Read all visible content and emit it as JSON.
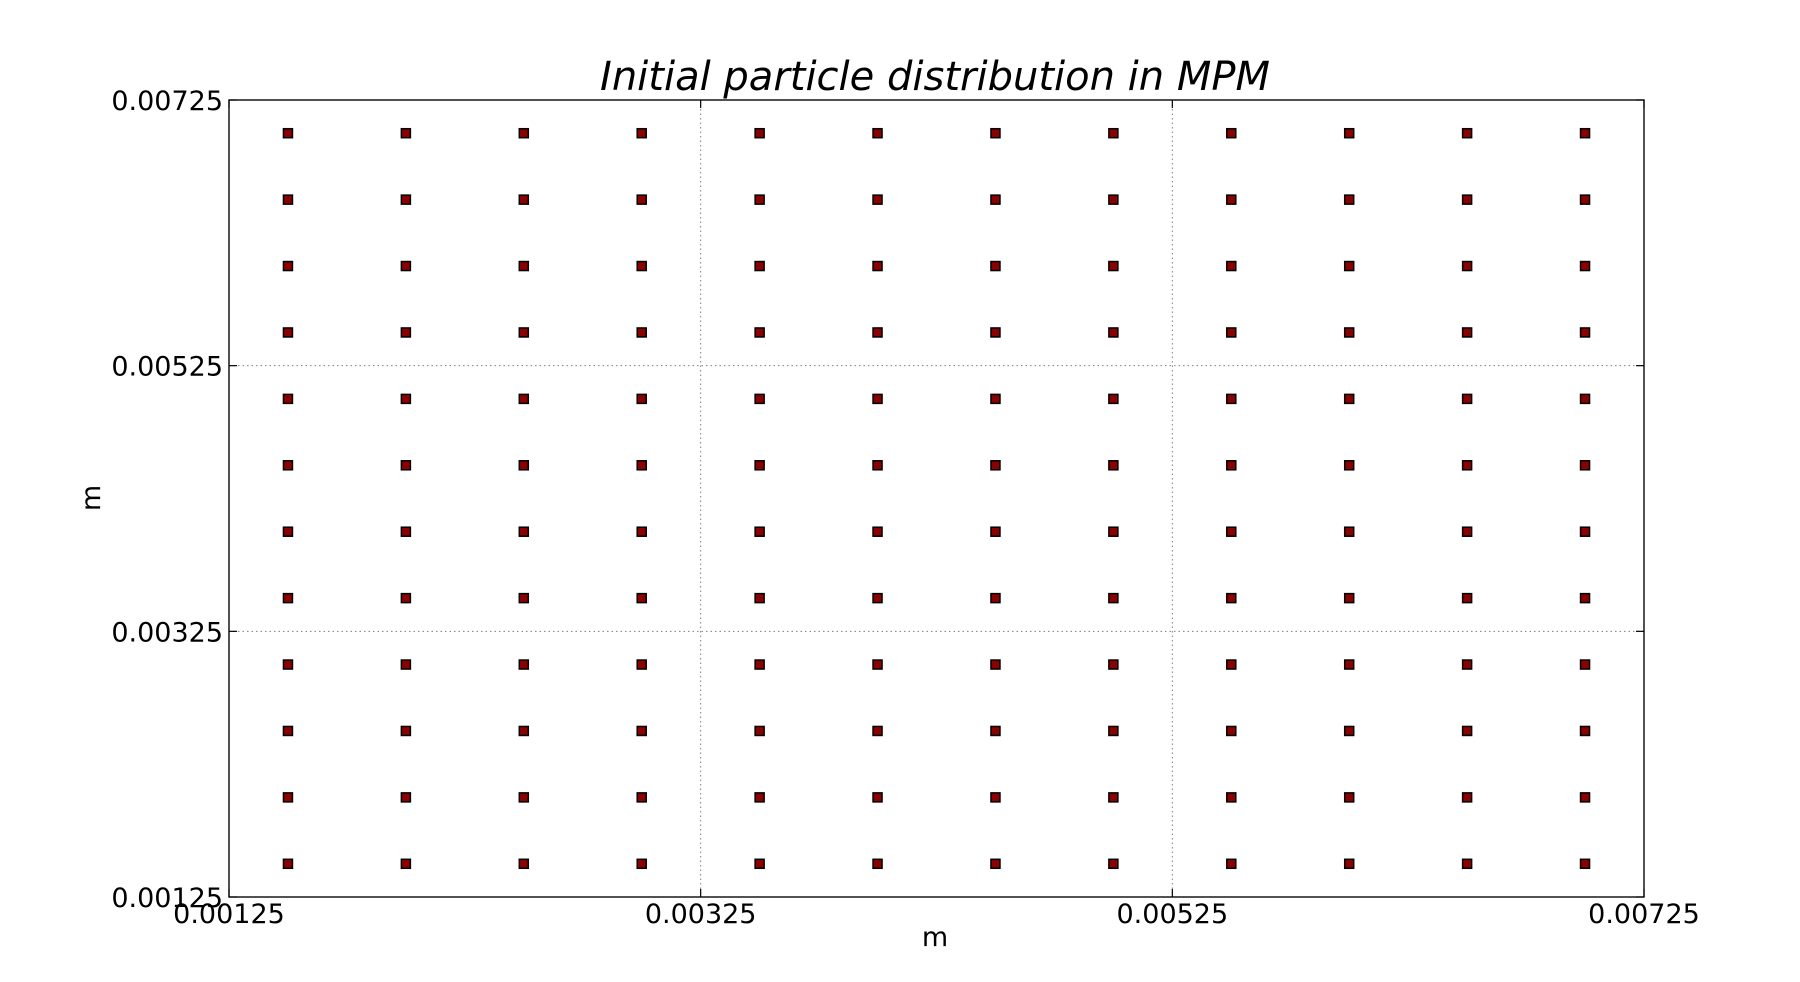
{
  "chart_data": {
    "type": "scatter",
    "title": "Initial particle distribution in MPM",
    "xlabel": "m",
    "ylabel": "m",
    "xlim": [
      0.00125,
      0.00725
    ],
    "ylim": [
      0.00125,
      0.00725
    ],
    "xticks": [
      "0.00125",
      "0.00325",
      "0.00525",
      "0.00725"
    ],
    "yticks": [
      "0.00125",
      "0.00325",
      "0.00525",
      "0.00725"
    ],
    "grid": true,
    "marker": "square",
    "marker_color": "#8b0000",
    "marker_edge_color": "#000000",
    "x": [
      0.0015,
      0.002,
      0.0025,
      0.003,
      0.0035,
      0.004,
      0.0045,
      0.005,
      0.0055,
      0.006,
      0.0065,
      0.007
    ],
    "y": [
      0.0015,
      0.002,
      0.0025,
      0.003,
      0.0035,
      0.004,
      0.0045,
      0.005,
      0.0055,
      0.006,
      0.0065,
      0.007
    ]
  }
}
